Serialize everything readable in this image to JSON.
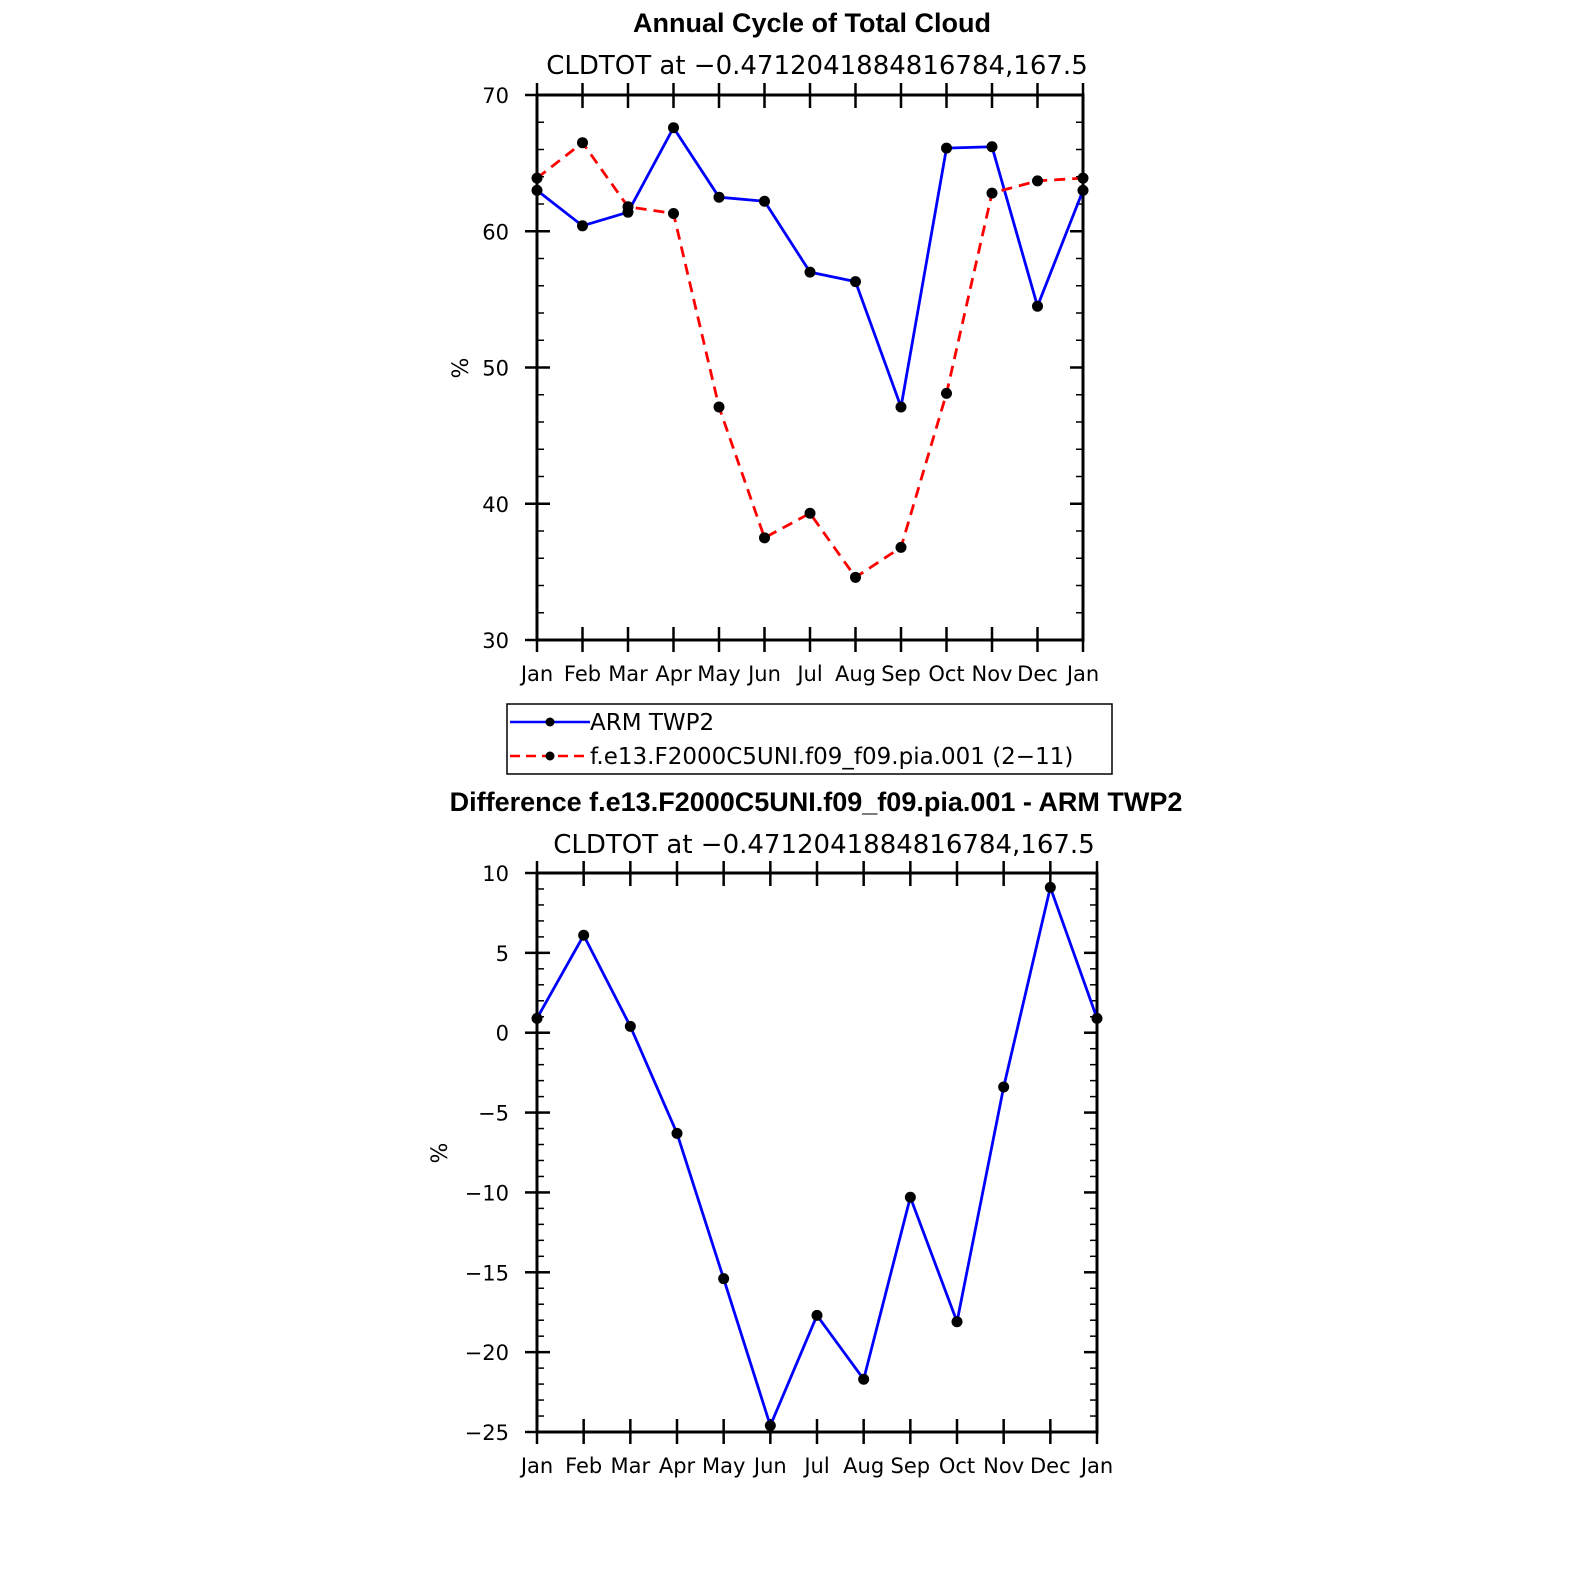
{
  "chart_data": [
    {
      "type": "line",
      "title": "Annual Cycle of Total Cloud",
      "subtitle": "CLDTOT at −0.4712041884816784,167.5",
      "ylabel": "%",
      "xlabel": "",
      "ylim": [
        30,
        70
      ],
      "yticks": [
        "30",
        "40",
        "50",
        "60",
        "70"
      ],
      "categories": [
        "Jan",
        "Feb",
        "Mar",
        "Apr",
        "May",
        "Jun",
        "Jul",
        "Aug",
        "Sep",
        "Oct",
        "Nov",
        "Dec",
        "Jan"
      ],
      "series": [
        {
          "name": "ARM TWP2",
          "color": "#0000ff",
          "style": "solid",
          "values": [
            63.0,
            60.4,
            61.4,
            67.6,
            62.5,
            62.2,
            57.0,
            56.3,
            47.1,
            66.1,
            66.2,
            54.5,
            63.0
          ]
        },
        {
          "name": "f.e13.F2000C5UNI.f09_f09.pia.001 (2−11)",
          "color": "#ff0000",
          "style": "dashed",
          "values": [
            63.9,
            66.5,
            61.8,
            61.3,
            47.1,
            37.5,
            39.3,
            34.6,
            36.8,
            48.1,
            62.8,
            63.7,
            63.9
          ]
        }
      ],
      "legend_position": "below"
    },
    {
      "type": "line",
      "title": "Difference f.e13.F2000C5UNI.f09_f09.pia.001 - ARM TWP2",
      "subtitle": "CLDTOT at −0.4712041884816784,167.5",
      "ylabel": "%",
      "xlabel": "",
      "ylim": [
        -25,
        10
      ],
      "yticks": [
        "−25",
        "−20",
        "−15",
        "−10",
        "−5",
        "0",
        "5",
        "10"
      ],
      "categories": [
        "Jan",
        "Feb",
        "Mar",
        "Apr",
        "May",
        "Jun",
        "Jul",
        "Aug",
        "Sep",
        "Oct",
        "Nov",
        "Dec",
        "Jan"
      ],
      "series": [
        {
          "color": "#0000ff",
          "style": "solid",
          "values": [
            0.9,
            6.1,
            0.4,
            -6.3,
            -15.4,
            -24.6,
            -17.7,
            -21.7,
            -10.3,
            -18.1,
            -3.4,
            9.1,
            0.9
          ]
        }
      ]
    }
  ]
}
